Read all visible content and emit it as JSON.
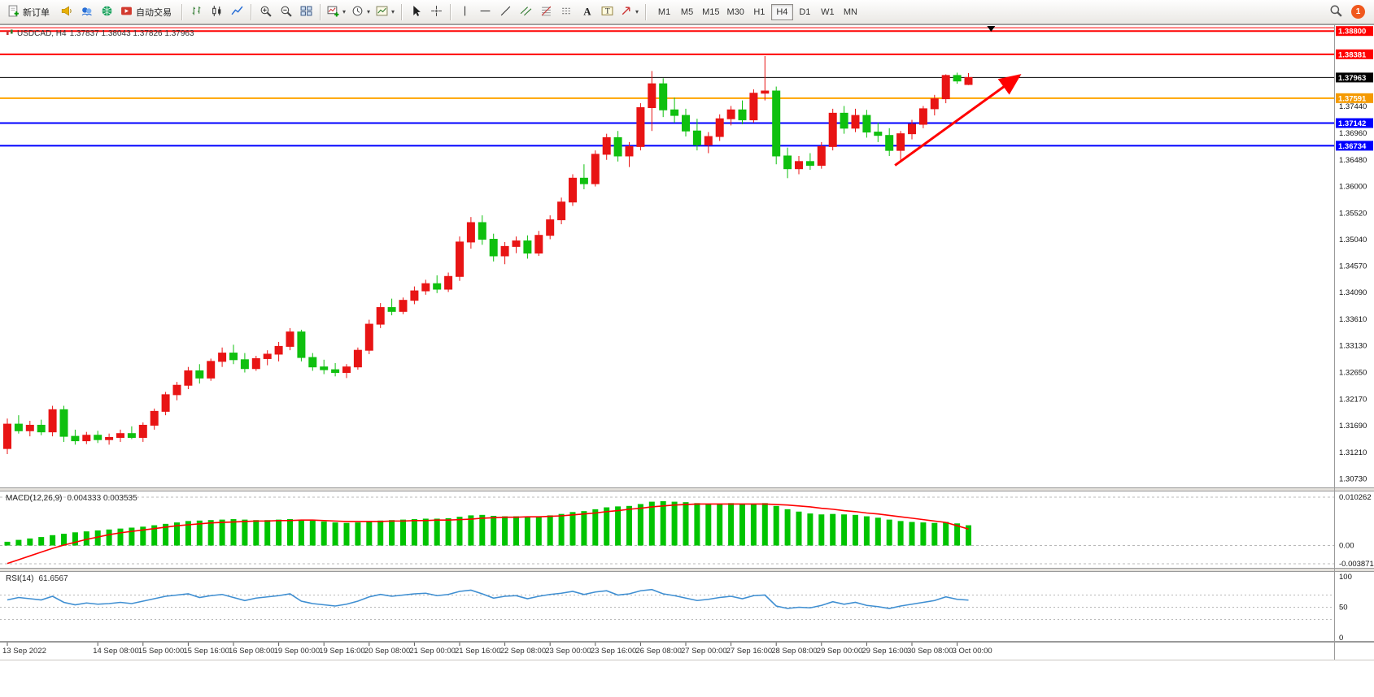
{
  "toolbar": {
    "new_order_label": "新订单",
    "auto_trading_label": "自动交易",
    "timeframes": [
      "M1",
      "M5",
      "M15",
      "M30",
      "H1",
      "H4",
      "D1",
      "W1",
      "MN"
    ],
    "active_timeframe": "H4",
    "notification_count": "1"
  },
  "chart": {
    "title_symbol": "USDCAD, H4",
    "title_ohlc": "1.37837 1.38043 1.37826 1.37963",
    "macd_label": "MACD(12,26,9)",
    "macd_values": "0.004333 0.003535",
    "rsi_label": "RSI(14)",
    "rsi_value": "61.6567"
  },
  "chart_data": {
    "type": "candlestick",
    "symbol": "USDCAD",
    "timeframe": "H4",
    "ohlc_current": {
      "open": 1.37837,
      "high": 1.38043,
      "low": 1.37826,
      "close": 1.37963
    },
    "price_axis": {
      "min": 1.3058,
      "max": 1.3892,
      "tick_labels": [
        "1.37440",
        "1.36960",
        "1.36480",
        "1.36000",
        "1.35520",
        "1.35040",
        "1.34570",
        "1.34090",
        "1.33610",
        "1.33130",
        "1.32650",
        "1.32170",
        "1.31690",
        "1.31210",
        "1.30730"
      ]
    },
    "levels": [
      {
        "price": 1.3886,
        "color": "#ff0000",
        "label": "",
        "width": 1
      },
      {
        "price": 1.388,
        "color": "#ff0000",
        "label": "1.38800",
        "width": 2
      },
      {
        "price": 1.38381,
        "color": "#ff0000",
        "label": "1.38381",
        "width": 2
      },
      {
        "price": 1.37963,
        "color": "#000000",
        "label": "1.37963",
        "width": 1
      },
      {
        "price": 1.37591,
        "color": "#ffa500",
        "label": "1.37591",
        "width": 2
      },
      {
        "price": 1.37142,
        "color": "#0000ff",
        "label": "1.37142",
        "width": 2
      },
      {
        "price": 1.36734,
        "color": "#0000ff",
        "label": "1.36734",
        "width": 2
      }
    ],
    "candles": [
      [
        1.3128,
        1.3182,
        1.3118,
        1.3172
      ],
      [
        1.3172,
        1.3188,
        1.3155,
        1.316
      ],
      [
        1.316,
        1.3178,
        1.315,
        1.317
      ],
      [
        1.317,
        1.318,
        1.3152,
        1.3158
      ],
      [
        1.3158,
        1.3205,
        1.315,
        1.3198
      ],
      [
        1.3198,
        1.3205,
        1.314,
        1.315
      ],
      [
        1.315,
        1.3162,
        1.3135,
        1.3142
      ],
      [
        1.3142,
        1.3158,
        1.3136,
        1.3152
      ],
      [
        1.3152,
        1.316,
        1.3138,
        1.3144
      ],
      [
        1.3144,
        1.3155,
        1.3135,
        1.3148
      ],
      [
        1.3148,
        1.3162,
        1.314,
        1.3155
      ],
      [
        1.3155,
        1.3168,
        1.3145,
        1.3148
      ],
      [
        1.3148,
        1.3175,
        1.314,
        1.317
      ],
      [
        1.317,
        1.32,
        1.3162,
        1.3195
      ],
      [
        1.3195,
        1.323,
        1.3188,
        1.3225
      ],
      [
        1.3225,
        1.3248,
        1.3215,
        1.3242
      ],
      [
        1.3242,
        1.3275,
        1.3235,
        1.3268
      ],
      [
        1.3268,
        1.328,
        1.3245,
        1.3255
      ],
      [
        1.3255,
        1.329,
        1.325,
        1.3285
      ],
      [
        1.3285,
        1.331,
        1.3275,
        1.33
      ],
      [
        1.33,
        1.3315,
        1.328,
        1.3288
      ],
      [
        1.3288,
        1.33,
        1.3265,
        1.3272
      ],
      [
        1.3272,
        1.3295,
        1.3268,
        1.329
      ],
      [
        1.329,
        1.3305,
        1.3278,
        1.3298
      ],
      [
        1.3298,
        1.332,
        1.3285,
        1.3312
      ],
      [
        1.3312,
        1.3345,
        1.3305,
        1.3338
      ],
      [
        1.3338,
        1.3342,
        1.3285,
        1.3292
      ],
      [
        1.3292,
        1.33,
        1.3268,
        1.3275
      ],
      [
        1.3275,
        1.3288,
        1.3262,
        1.327
      ],
      [
        1.327,
        1.3282,
        1.3258,
        1.3265
      ],
      [
        1.3265,
        1.328,
        1.3255,
        1.3275
      ],
      [
        1.3275,
        1.331,
        1.327,
        1.3305
      ],
      [
        1.3305,
        1.336,
        1.3298,
        1.3352
      ],
      [
        1.3352,
        1.339,
        1.3345,
        1.3382
      ],
      [
        1.3382,
        1.3398,
        1.3368,
        1.3375
      ],
      [
        1.3375,
        1.34,
        1.337,
        1.3395
      ],
      [
        1.3395,
        1.342,
        1.3388,
        1.3412
      ],
      [
        1.3412,
        1.3432,
        1.3405,
        1.3425
      ],
      [
        1.3425,
        1.344,
        1.3408,
        1.3415
      ],
      [
        1.3415,
        1.3445,
        1.341,
        1.3438
      ],
      [
        1.3438,
        1.351,
        1.343,
        1.35
      ],
      [
        1.35,
        1.3545,
        1.3488,
        1.3535
      ],
      [
        1.3535,
        1.3548,
        1.3495,
        1.3505
      ],
      [
        1.3505,
        1.3515,
        1.3465,
        1.3475
      ],
      [
        1.3475,
        1.35,
        1.346,
        1.3492
      ],
      [
        1.3492,
        1.351,
        1.348,
        1.3502
      ],
      [
        1.3502,
        1.3512,
        1.347,
        1.348
      ],
      [
        1.348,
        1.352,
        1.3475,
        1.3512
      ],
      [
        1.3512,
        1.3548,
        1.3505,
        1.354
      ],
      [
        1.354,
        1.358,
        1.3532,
        1.3572
      ],
      [
        1.3572,
        1.3622,
        1.3565,
        1.3615
      ],
      [
        1.3615,
        1.364,
        1.3595,
        1.3605
      ],
      [
        1.3605,
        1.3665,
        1.36,
        1.3658
      ],
      [
        1.3658,
        1.3695,
        1.3648,
        1.3688
      ],
      [
        1.3688,
        1.37,
        1.3645,
        1.3655
      ],
      [
        1.3655,
        1.368,
        1.3635,
        1.3672
      ],
      [
        1.3672,
        1.375,
        1.3665,
        1.3742
      ],
      [
        1.3742,
        1.3808,
        1.37,
        1.3785
      ],
      [
        1.3785,
        1.3795,
        1.3725,
        1.3738
      ],
      [
        1.3738,
        1.376,
        1.3715,
        1.3728
      ],
      [
        1.3728,
        1.374,
        1.369,
        1.37
      ],
      [
        1.37,
        1.3722,
        1.3665,
        1.3675
      ],
      [
        1.3675,
        1.3698,
        1.366,
        1.369
      ],
      [
        1.369,
        1.373,
        1.3682,
        1.3722
      ],
      [
        1.3722,
        1.3745,
        1.371,
        1.3738
      ],
      [
        1.3738,
        1.3755,
        1.3712,
        1.372
      ],
      [
        1.372,
        1.3775,
        1.3715,
        1.3768
      ],
      [
        1.3768,
        1.3835,
        1.3755,
        1.3772
      ],
      [
        1.3772,
        1.378,
        1.364,
        1.3655
      ],
      [
        1.3655,
        1.367,
        1.3615,
        1.3632
      ],
      [
        1.3632,
        1.3655,
        1.3622,
        1.3645
      ],
      [
        1.3645,
        1.366,
        1.363,
        1.3638
      ],
      [
        1.3638,
        1.368,
        1.3632,
        1.3672
      ],
      [
        1.3672,
        1.374,
        1.3665,
        1.3732
      ],
      [
        1.3732,
        1.3745,
        1.3695,
        1.3705
      ],
      [
        1.3705,
        1.374,
        1.3698,
        1.3728
      ],
      [
        1.3728,
        1.3738,
        1.3688,
        1.3698
      ],
      [
        1.3698,
        1.3715,
        1.368,
        1.3692
      ],
      [
        1.3692,
        1.3705,
        1.3655,
        1.3665
      ],
      [
        1.3665,
        1.37,
        1.3648,
        1.3695
      ],
      [
        1.3695,
        1.372,
        1.3685,
        1.3712
      ],
      [
        1.3712,
        1.3745,
        1.3705,
        1.374
      ],
      [
        1.374,
        1.3765,
        1.3728,
        1.3758
      ],
      [
        1.3758,
        1.3802,
        1.375,
        1.38
      ],
      [
        1.38,
        1.3805,
        1.3785,
        1.379
      ],
      [
        1.37837,
        1.38043,
        1.37826,
        1.37963
      ]
    ],
    "time_labels": [
      {
        "i": 0,
        "t": "13 Sep 2022"
      },
      {
        "i": 8,
        "t": "14 Sep 08:00"
      },
      {
        "i": 12,
        "t": "15 Sep 00:00"
      },
      {
        "i": 16,
        "t": "15 Sep 16:00"
      },
      {
        "i": 20,
        "t": "16 Sep 08:00"
      },
      {
        "i": 24,
        "t": "19 Sep 00:00"
      },
      {
        "i": 28,
        "t": "19 Sep 16:00"
      },
      {
        "i": 32,
        "t": "20 Sep 08:00"
      },
      {
        "i": 36,
        "t": "21 Sep 00:00"
      },
      {
        "i": 40,
        "t": "21 Sep 16:00"
      },
      {
        "i": 44,
        "t": "22 Sep 08:00"
      },
      {
        "i": 48,
        "t": "23 Sep 00:00"
      },
      {
        "i": 52,
        "t": "23 Sep 16:00"
      },
      {
        "i": 56,
        "t": "26 Sep 08:00"
      },
      {
        "i": 60,
        "t": "27 Sep 00:00"
      },
      {
        "i": 64,
        "t": "27 Sep 16:00"
      },
      {
        "i": 68,
        "t": "28 Sep 08:00"
      },
      {
        "i": 72,
        "t": "29 Sep 00:00"
      },
      {
        "i": 76,
        "t": "29 Sep 16:00"
      },
      {
        "i": 80,
        "t": "30 Sep 08:00"
      },
      {
        "i": 84,
        "t": "3 Oct 00:00"
      }
    ],
    "macd": {
      "name": "MACD(12,26,9)",
      "main_value": 0.004333,
      "signal_value": 0.003535,
      "scale_max": 0.010262,
      "scale_min": -0.003871,
      "scale_labels": {
        "max": "0.010262",
        "zero": "0.00",
        "min": "-0.003871"
      },
      "hist": [
        0.0008,
        0.0012,
        0.0015,
        0.0018,
        0.0022,
        0.0025,
        0.0028,
        0.003,
        0.0032,
        0.0034,
        0.0036,
        0.0038,
        0.004,
        0.0043,
        0.0046,
        0.0049,
        0.0052,
        0.0053,
        0.0054,
        0.0055,
        0.0056,
        0.0055,
        0.0054,
        0.0054,
        0.0055,
        0.0056,
        0.0055,
        0.0053,
        0.0051,
        0.0049,
        0.0048,
        0.0049,
        0.0051,
        0.0053,
        0.0054,
        0.0055,
        0.0056,
        0.0057,
        0.0057,
        0.0058,
        0.0061,
        0.0064,
        0.0065,
        0.0063,
        0.0062,
        0.0062,
        0.0061,
        0.0062,
        0.0064,
        0.0067,
        0.0071,
        0.0073,
        0.0077,
        0.0081,
        0.0083,
        0.0084,
        0.0088,
        0.0093,
        0.0094,
        0.0093,
        0.0092,
        0.009,
        0.0089,
        0.0089,
        0.009,
        0.0089,
        0.0089,
        0.009,
        0.0084,
        0.0077,
        0.0072,
        0.0068,
        0.0066,
        0.0067,
        0.0066,
        0.0065,
        0.0062,
        0.0059,
        0.0055,
        0.0052,
        0.005,
        0.0049,
        0.0048,
        0.005,
        0.0047,
        0.0043
      ],
      "signal": [
        -0.0038,
        -0.003,
        -0.0022,
        -0.0014,
        -0.0006,
        0.0001,
        0.0007,
        0.0013,
        0.0018,
        0.0023,
        0.0027,
        0.003,
        0.0033,
        0.0036,
        0.0039,
        0.0042,
        0.0044,
        0.0046,
        0.0048,
        0.0049,
        0.005,
        0.0051,
        0.0052,
        0.0052,
        0.0053,
        0.0053,
        0.0054,
        0.0054,
        0.0053,
        0.0052,
        0.0051,
        0.0051,
        0.0051,
        0.0051,
        0.0052,
        0.0052,
        0.0053,
        0.0053,
        0.0054,
        0.0054,
        0.0055,
        0.0056,
        0.0058,
        0.0059,
        0.006,
        0.006,
        0.0061,
        0.0061,
        0.0062,
        0.0063,
        0.0065,
        0.0067,
        0.0069,
        0.0072,
        0.0074,
        0.0077,
        0.0079,
        0.0082,
        0.0084,
        0.0086,
        0.0087,
        0.0088,
        0.0088,
        0.0088,
        0.0088,
        0.0088,
        0.0088,
        0.0088,
        0.0087,
        0.0086,
        0.0084,
        0.0082,
        0.0079,
        0.0077,
        0.0074,
        0.0072,
        0.0069,
        0.0067,
        0.0064,
        0.0061,
        0.0058,
        0.0055,
        0.0052,
        0.0049,
        0.0042,
        0.0035
      ]
    },
    "rsi": {
      "name": "RSI(14)",
      "value": 61.6567,
      "scale_labels": [
        "100",
        "50",
        "0"
      ],
      "levels": [
        70,
        50,
        30
      ],
      "values": [
        62,
        66,
        64,
        62,
        68,
        58,
        54,
        57,
        55,
        56,
        58,
        56,
        60,
        64,
        68,
        70,
        72,
        66,
        69,
        71,
        66,
        61,
        65,
        67,
        69,
        72,
        60,
        56,
        54,
        52,
        55,
        60,
        67,
        71,
        68,
        70,
        72,
        73,
        69,
        71,
        76,
        78,
        72,
        65,
        68,
        69,
        64,
        68,
        71,
        73,
        76,
        71,
        75,
        77,
        70,
        72,
        77,
        79,
        72,
        69,
        65,
        61,
        63,
        66,
        68,
        64,
        69,
        70,
        52,
        48,
        50,
        49,
        53,
        59,
        55,
        58,
        53,
        51,
        48,
        52,
        55,
        58,
        61,
        67,
        63,
        61.6567
      ]
    },
    "trend_arrow": {
      "from_candle": 78.5,
      "from_price": 1.3638,
      "to_candle": 89.5,
      "to_price": 1.38,
      "color": "#ff0000"
    },
    "shift_marker_candle": 87,
    "colors": {
      "up": "#e81414",
      "down": "#0fc00f",
      "macd_hist": "#00c400",
      "macd_signal": "#ff0000",
      "rsi_line": "#3f8fd2",
      "background": "#ffffff",
      "axis_text": "#2e2e2e",
      "panel_divider": "#e4e1dc"
    }
  }
}
